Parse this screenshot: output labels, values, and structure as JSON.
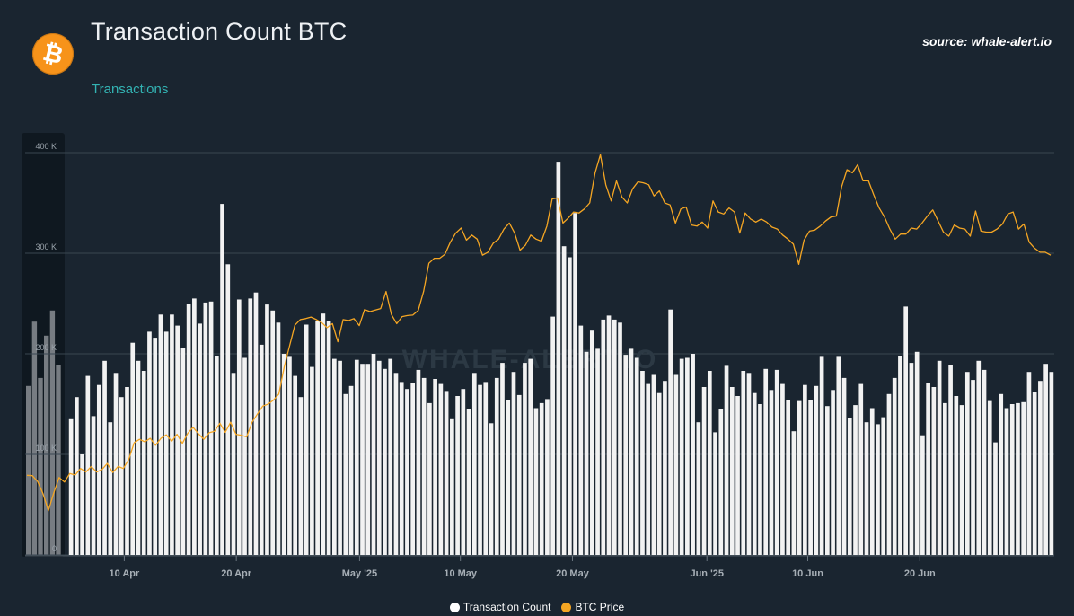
{
  "header": {
    "title": "Transaction Count BTC",
    "subtitle": "Transactions",
    "source": "source: whale-alert.io",
    "logo_icon": "bitcoin-logo-icon",
    "logo_symbol": "₿"
  },
  "watermark": "WHALE-ALERT.IO",
  "colors": {
    "background": "#1a2530",
    "bars": "#f2f2f2",
    "line": "#f5a623",
    "grid": "#3a4651",
    "navigator": "#0f1820"
  },
  "chart_data": {
    "type": "bar",
    "title": "Transaction Count BTC",
    "subtitle": "Transactions",
    "grid": true,
    "legend_position": "bottom-center",
    "y_axis": {
      "ylim": [
        0,
        400000
      ],
      "ticks": [
        "0",
        "100 K",
        "200 K",
        "300 K",
        "400 K"
      ],
      "tick_values": [
        0,
        100000,
        200000,
        300000,
        400000
      ]
    },
    "x_axis": {
      "start": "2025-04-05",
      "end": "2025-06-30",
      "ticks": [
        "10 Apr",
        "20 Apr",
        "May '25",
        "10 May",
        "20 May",
        "Jun '25",
        "10 Jun",
        "20 Jun"
      ],
      "tick_dates": [
        "2025-04-10",
        "2025-04-20",
        "2025-05-01",
        "2025-05-10",
        "2025-05-20",
        "2025-06-01",
        "2025-06-10",
        "2025-06-20"
      ]
    },
    "navigator_values": [
      168000,
      232000,
      176000,
      218000,
      243000,
      189000
    ],
    "series": [
      {
        "name": "Transaction Count",
        "type": "bar",
        "values": [
          135000,
          157000,
          100000,
          178000,
          138000,
          169000,
          193000,
          132000,
          181000,
          157000,
          167000,
          211000,
          193000,
          183000,
          222000,
          216000,
          239000,
          222000,
          239000,
          228000,
          206000,
          250000,
          255000,
          230000,
          251000,
          252000,
          198000,
          349000,
          289000,
          181000,
          254000,
          196000,
          255000,
          261000,
          209000,
          249000,
          243000,
          231000,
          200000,
          197000,
          178000,
          157000,
          229000,
          187000,
          233000,
          240000,
          233000,
          195000,
          193000,
          160000,
          168000,
          194000,
          190000,
          190000,
          200000,
          193000,
          185000,
          195000,
          181000,
          172000,
          165000,
          171000,
          184000,
          176000,
          151000,
          175000,
          170000,
          163000,
          135000,
          158000,
          165000,
          145000,
          181000,
          169000,
          172000,
          131000,
          176000,
          191000,
          154000,
          182000,
          159000,
          191000,
          195000,
          146000,
          151000,
          155000,
          237000,
          391000,
          307000,
          296000,
          340000,
          228000,
          202000,
          223000,
          205000,
          234000,
          238000,
          234000,
          231000,
          199000,
          205000,
          196000,
          183000,
          170000,
          179000,
          161000,
          173000,
          244000,
          179000,
          195000,
          196000,
          200000,
          132000,
          167000,
          183000,
          122000,
          145000,
          188000,
          167000,
          158000,
          183000,
          181000,
          161000,
          150000,
          185000,
          164000,
          184000,
          170000,
          154000,
          123000,
          153000,
          169000,
          154000,
          168000,
          197000,
          148000,
          164000,
          197000,
          176000,
          136000,
          149000,
          170000,
          132000,
          146000,
          130000,
          137000,
          160000,
          176000,
          198000,
          247000,
          191000,
          202000,
          119000,
          171000,
          167000,
          193000,
          151000,
          189000,
          158000,
          149000,
          182000,
          174000,
          193000,
          184000,
          153000,
          112000,
          160000,
          146000,
          150000,
          151000,
          152000,
          182000,
          162000,
          173000,
          190000,
          182000
        ],
        "color": "#f2f2f2"
      },
      {
        "name": "BTC Price",
        "type": "line",
        "values": [
          79200,
          78800,
          73000,
          61000,
          44000,
          61500,
          77000,
          72500,
          81000,
          79500,
          86000,
          82500,
          88000,
          82500,
          85000,
          91000,
          82000,
          88000,
          86000,
          95000,
          111500,
          115000,
          112500,
          116000,
          109000,
          116000,
          119500,
          113000,
          120000,
          111000,
          121000,
          127000,
          120500,
          115000,
          121500,
          123000,
          131000,
          122000,
          132000,
          120000,
          119000,
          117500,
          132000,
          140000,
          148000,
          150000,
          154000,
          160000,
          187000,
          208000,
          228500,
          234000,
          235000,
          236500,
          234000,
          231000,
          226000,
          230000,
          212000,
          234000,
          233000,
          235000,
          228000,
          244000,
          242000,
          243500,
          245000,
          262000,
          239000,
          230000,
          237000,
          238000,
          238500,
          243000,
          262000,
          290000,
          295000,
          295000,
          299000,
          311000,
          320000,
          325000,
          313000,
          318000,
          314000,
          298000,
          301000,
          310000,
          314000,
          324000,
          330000,
          320000,
          303000,
          308000,
          318000,
          314000,
          312000,
          327000,
          354000,
          355000,
          330000,
          335000,
          341000,
          340000,
          344000,
          350000,
          380000,
          398000,
          368000,
          352000,
          372000,
          356000,
          350000,
          364000,
          371000,
          370000,
          368000,
          357000,
          362000,
          350000,
          348000,
          330000,
          344000,
          346000,
          328000,
          327000,
          331000,
          325000,
          352000,
          341000,
          339000,
          345000,
          341000,
          320000,
          340000,
          334000,
          331000,
          334000,
          331000,
          326000,
          324000,
          318000,
          314000,
          309000,
          289000,
          313000,
          322000,
          323000,
          327000,
          332000,
          336000,
          337000,
          366000,
          383000,
          380000,
          388000,
          372000,
          372000,
          358000,
          345000,
          336000,
          324000,
          314000,
          319000,
          319000,
          325000,
          324000,
          330000,
          337000,
          343000,
          332000,
          321000,
          317000,
          328000,
          325000,
          324000,
          317000,
          342000,
          322000,
          321000,
          321000,
          324000,
          329000,
          339000,
          341000,
          324000,
          329000,
          311000,
          305000,
          301000,
          301000,
          298000
        ],
        "color": "#f5a623"
      }
    ]
  },
  "legend": [
    {
      "label": "Transaction Count",
      "color": "#ffffff"
    },
    {
      "label": "BTC Price",
      "color": "#f5a623"
    }
  ]
}
